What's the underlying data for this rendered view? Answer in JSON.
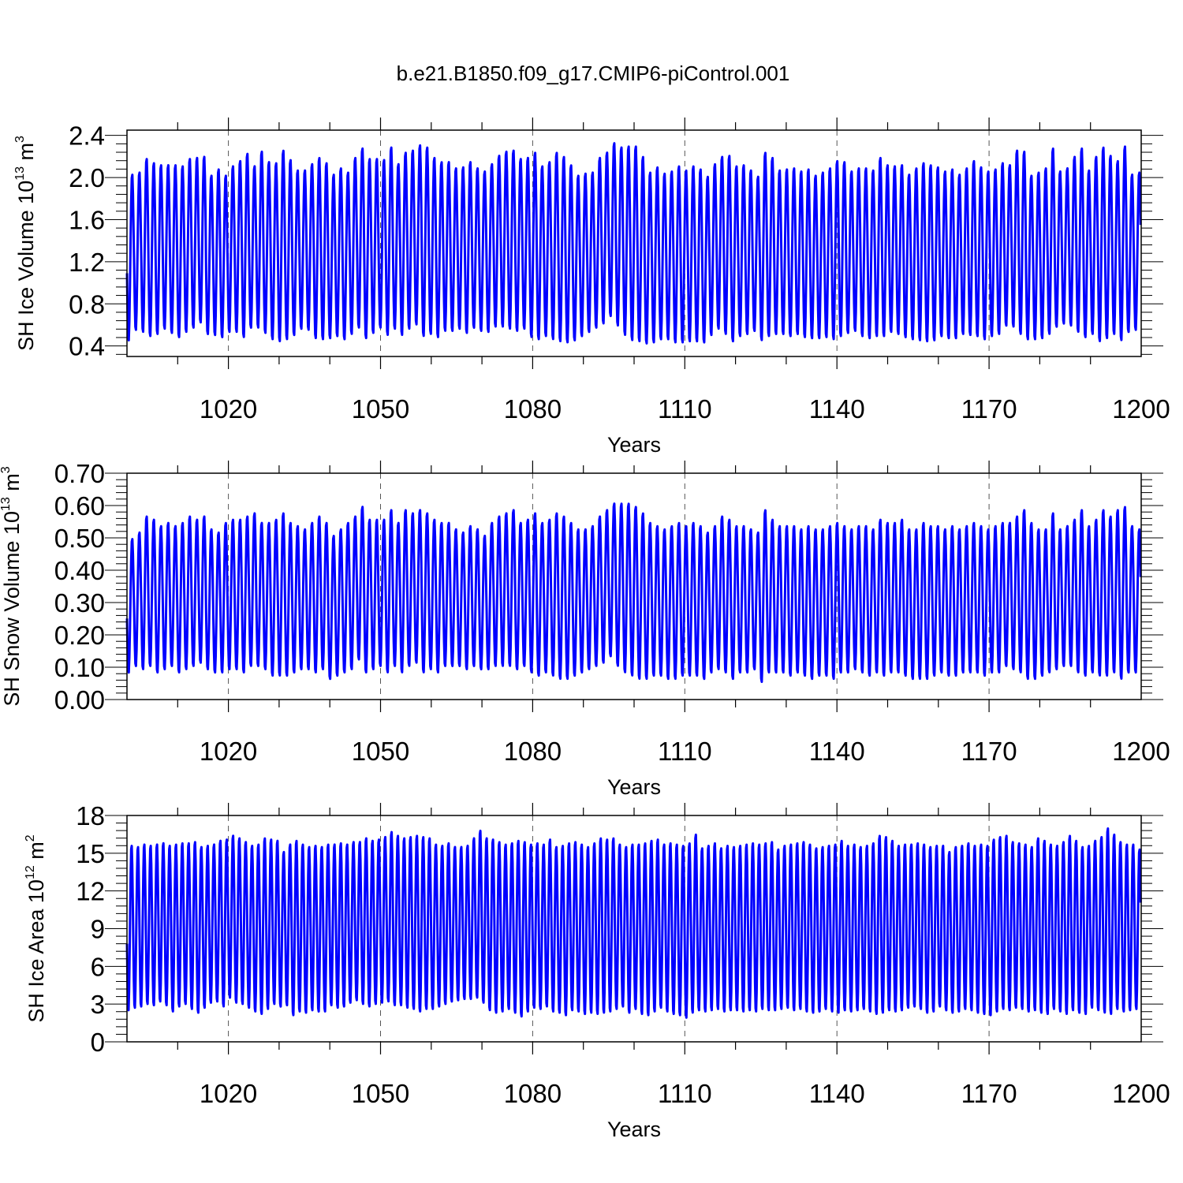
{
  "title": "b.e21.B1850.f09_g17.CMIP6-piControl.001",
  "colors": {
    "line": "#0000ff",
    "axis": "#000000",
    "grid": "#555555"
  },
  "chart_data": [
    {
      "type": "line",
      "title": "b.e21.B1850.f09_g17.CMIP6-piControl.001",
      "xlabel": "Years",
      "ylabel": {
        "prefix": "SH Ice Volume 10",
        "exp": "13",
        "unit": " m",
        "unit_exp": "3"
      },
      "xlim": [
        1000,
        1200
      ],
      "ylim": [
        0.3,
        2.45
      ],
      "x_ticks": [
        1020,
        1050,
        1080,
        1110,
        1140,
        1170,
        1200
      ],
      "x_tick_labels": [
        "1020",
        "1050",
        "1080",
        "1110",
        "1140",
        "1170",
        "1200"
      ],
      "y_ticks": [
        0.4,
        0.8,
        1.2,
        1.6,
        2.0,
        2.4
      ],
      "y_tick_labels": [
        "0.4",
        "0.8",
        "1.2",
        "1.6",
        "2.0",
        "2.4"
      ],
      "grid": "vertical dashed at major x ticks",
      "series": [
        {
          "color": "#0000ff",
          "start_year": 1000,
          "annual_max": [
            2.04,
            2.06,
            2.19,
            2.15,
            2.13,
            2.13,
            2.13,
            2.12,
            2.19,
            2.2,
            2.21,
            2.03,
            2.09,
            2.03,
            2.12,
            2.17,
            2.24,
            2.12,
            2.26,
            2.16,
            2.15,
            2.27,
            2.18,
            2.08,
            2.08,
            2.14,
            2.2,
            2.15,
            2.04,
            2.1,
            2.06,
            2.2,
            2.29,
            2.19,
            2.19,
            2.18,
            2.3,
            2.14,
            2.25,
            2.27,
            2.32,
            2.3,
            2.2,
            2.16,
            2.16,
            2.1,
            2.11,
            2.16,
            2.1,
            2.07,
            2.14,
            2.22,
            2.26,
            2.27,
            2.19,
            2.2,
            2.25,
            2.12,
            2.16,
            2.25,
            2.21,
            2.13,
            2.03,
            2.05,
            2.06,
            2.2,
            2.25,
            2.34,
            2.3,
            2.31,
            2.31,
            2.21,
            2.06,
            2.11,
            2.05,
            2.07,
            2.12,
            2.08,
            2.12,
            2.09,
            2.02,
            2.14,
            2.21,
            2.22,
            2.12,
            2.13,
            2.08,
            2.02,
            2.25,
            2.2,
            2.08,
            2.09,
            2.1,
            2.07,
            2.09,
            2.03,
            2.06,
            2.1,
            2.17,
            2.16,
            2.07,
            2.1,
            2.1,
            2.08,
            2.2,
            2.13,
            2.12,
            2.13,
            2.04,
            2.1,
            2.15,
            2.13,
            2.11,
            2.07,
            2.09,
            2.04,
            2.1,
            2.17,
            2.11,
            2.07,
            2.09,
            2.15,
            2.13,
            2.27,
            2.26,
            2.03,
            2.06,
            2.1,
            2.29,
            2.07,
            2.1,
            2.21,
            2.29,
            2.08,
            2.21,
            2.3,
            2.22,
            2.17,
            2.31,
            2.04,
            2.06
          ],
          "annual_min": [
            0.44,
            0.54,
            0.52,
            0.48,
            0.5,
            0.55,
            0.51,
            0.47,
            0.52,
            0.56,
            0.61,
            0.5,
            0.49,
            0.47,
            0.52,
            0.52,
            0.47,
            0.56,
            0.56,
            0.51,
            0.45,
            0.43,
            0.45,
            0.49,
            0.55,
            0.54,
            0.46,
            0.45,
            0.46,
            0.48,
            0.45,
            0.5,
            0.56,
            0.46,
            0.51,
            0.56,
            0.49,
            0.55,
            0.49,
            0.55,
            0.59,
            0.48,
            0.5,
            0.47,
            0.53,
            0.53,
            0.55,
            0.51,
            0.56,
            0.53,
            0.52,
            0.57,
            0.57,
            0.55,
            0.53,
            0.55,
            0.47,
            0.45,
            0.48,
            0.45,
            0.43,
            0.42,
            0.44,
            0.48,
            0.52,
            0.56,
            0.6,
            0.67,
            0.58,
            0.49,
            0.44,
            0.43,
            0.41,
            0.42,
            0.45,
            0.45,
            0.42,
            0.42,
            0.43,
            0.43,
            0.42,
            0.49,
            0.55,
            0.5,
            0.43,
            0.48,
            0.5,
            0.53,
            0.44,
            0.48,
            0.5,
            0.5,
            0.48,
            0.5,
            0.47,
            0.46,
            0.46,
            0.47,
            0.45,
            0.48,
            0.51,
            0.53,
            0.48,
            0.46,
            0.48,
            0.48,
            0.52,
            0.5,
            0.47,
            0.45,
            0.44,
            0.43,
            0.44,
            0.48,
            0.46,
            0.46,
            0.5,
            0.49,
            0.48,
            0.45,
            0.48,
            0.5,
            0.58,
            0.57,
            0.5,
            0.45,
            0.45,
            0.46,
            0.5,
            0.57,
            0.6,
            0.58,
            0.52,
            0.47,
            0.5,
            0.43,
            0.46,
            0.5,
            0.44,
            0.52,
            0.54
          ]
        }
      ]
    },
    {
      "type": "line",
      "xlabel": "Years",
      "ylabel": {
        "prefix": "SH Snow Volume 10",
        "exp": "13",
        "unit": " m",
        "unit_exp": "3"
      },
      "xlim": [
        1000,
        1200
      ],
      "ylim": [
        0.0,
        0.7
      ],
      "x_ticks": [
        1020,
        1050,
        1080,
        1110,
        1140,
        1170,
        1200
      ],
      "x_tick_labels": [
        "1020",
        "1050",
        "1080",
        "1110",
        "1140",
        "1170",
        "1200"
      ],
      "y_ticks": [
        0.0,
        0.1,
        0.2,
        0.3,
        0.4,
        0.5,
        0.6,
        0.7
      ],
      "y_tick_labels": [
        "0.00",
        "0.10",
        "0.20",
        "0.30",
        "0.40",
        "0.50",
        "0.60",
        "0.70"
      ],
      "grid": "vertical dashed at major x ticks",
      "series": [
        {
          "color": "#0000ff",
          "start_year": 1000,
          "annual_max": [
            0.5,
            0.52,
            0.57,
            0.56,
            0.54,
            0.55,
            0.54,
            0.55,
            0.57,
            0.56,
            0.57,
            0.53,
            0.52,
            0.55,
            0.56,
            0.56,
            0.57,
            0.58,
            0.55,
            0.55,
            0.56,
            0.58,
            0.55,
            0.54,
            0.53,
            0.55,
            0.57,
            0.55,
            0.51,
            0.53,
            0.55,
            0.57,
            0.6,
            0.56,
            0.56,
            0.56,
            0.59,
            0.55,
            0.59,
            0.58,
            0.59,
            0.58,
            0.56,
            0.55,
            0.55,
            0.53,
            0.52,
            0.54,
            0.53,
            0.51,
            0.55,
            0.57,
            0.58,
            0.59,
            0.55,
            0.56,
            0.58,
            0.55,
            0.56,
            0.58,
            0.57,
            0.55,
            0.53,
            0.53,
            0.54,
            0.57,
            0.59,
            0.61,
            0.61,
            0.61,
            0.6,
            0.58,
            0.55,
            0.54,
            0.53,
            0.54,
            0.55,
            0.54,
            0.55,
            0.54,
            0.52,
            0.54,
            0.57,
            0.56,
            0.54,
            0.54,
            0.53,
            0.52,
            0.59,
            0.56,
            0.54,
            0.54,
            0.54,
            0.53,
            0.54,
            0.53,
            0.53,
            0.54,
            0.55,
            0.54,
            0.53,
            0.54,
            0.54,
            0.53,
            0.56,
            0.55,
            0.55,
            0.56,
            0.53,
            0.53,
            0.55,
            0.54,
            0.54,
            0.53,
            0.54,
            0.53,
            0.54,
            0.55,
            0.54,
            0.53,
            0.54,
            0.55,
            0.55,
            0.57,
            0.59,
            0.55,
            0.53,
            0.53,
            0.58,
            0.53,
            0.54,
            0.56,
            0.59,
            0.54,
            0.56,
            0.59,
            0.57,
            0.59,
            0.6,
            0.54,
            0.53
          ],
          "annual_min": [
            0.08,
            0.1,
            0.09,
            0.1,
            0.08,
            0.09,
            0.1,
            0.08,
            0.09,
            0.1,
            0.11,
            0.09,
            0.08,
            0.08,
            0.09,
            0.09,
            0.08,
            0.1,
            0.1,
            0.09,
            0.07,
            0.07,
            0.07,
            0.08,
            0.09,
            0.09,
            0.08,
            0.09,
            0.06,
            0.07,
            0.08,
            0.09,
            0.12,
            0.08,
            0.09,
            0.1,
            0.08,
            0.1,
            0.08,
            0.1,
            0.11,
            0.08,
            0.09,
            0.08,
            0.1,
            0.1,
            0.1,
            0.09,
            0.1,
            0.09,
            0.09,
            0.1,
            0.1,
            0.1,
            0.09,
            0.1,
            0.08,
            0.07,
            0.08,
            0.07,
            0.06,
            0.06,
            0.07,
            0.08,
            0.09,
            0.1,
            0.11,
            0.13,
            0.1,
            0.08,
            0.07,
            0.06,
            0.06,
            0.07,
            0.07,
            0.06,
            0.06,
            0.07,
            0.07,
            0.07,
            0.06,
            0.08,
            0.09,
            0.08,
            0.06,
            0.08,
            0.08,
            0.09,
            0.05,
            0.08,
            0.08,
            0.08,
            0.07,
            0.08,
            0.07,
            0.06,
            0.07,
            0.07,
            0.06,
            0.08,
            0.08,
            0.09,
            0.08,
            0.07,
            0.08,
            0.07,
            0.08,
            0.08,
            0.07,
            0.06,
            0.06,
            0.06,
            0.07,
            0.08,
            0.07,
            0.07,
            0.08,
            0.08,
            0.08,
            0.07,
            0.08,
            0.08,
            0.1,
            0.09,
            0.08,
            0.06,
            0.06,
            0.07,
            0.08,
            0.09,
            0.1,
            0.1,
            0.08,
            0.07,
            0.08,
            0.07,
            0.07,
            0.08,
            0.06,
            0.08,
            0.08
          ]
        }
      ]
    },
    {
      "type": "line",
      "xlabel": "Years",
      "ylabel": {
        "prefix": "SH Ice Area 10",
        "exp": "12",
        "unit": " m",
        "unit_exp": "2"
      },
      "xlim": [
        1000,
        1200
      ],
      "ylim": [
        0,
        18
      ],
      "x_ticks": [
        1020,
        1050,
        1080,
        1110,
        1140,
        1170,
        1200
      ],
      "x_tick_labels": [
        "1020",
        "1050",
        "1080",
        "1110",
        "1140",
        "1170",
        "1200"
      ],
      "y_ticks": [
        0,
        3,
        6,
        9,
        12,
        15,
        18
      ],
      "y_tick_labels": [
        "0",
        "3",
        "6",
        "9",
        "12",
        "15",
        "18"
      ],
      "grid": "vertical dashed at major x ticks",
      "series": [
        {
          "color": "#0000ff",
          "start_year": 1000,
          "annual_max": [
            15.7,
            15.6,
            15.8,
            15.7,
            15.8,
            15.9,
            15.7,
            15.8,
            15.9,
            15.9,
            16.0,
            15.6,
            15.7,
            15.8,
            16.1,
            16.2,
            16.5,
            16.3,
            16.0,
            15.7,
            15.8,
            16.3,
            16.2,
            16.1,
            15.2,
            15.8,
            16.1,
            15.8,
            15.6,
            15.7,
            15.6,
            15.8,
            15.8,
            15.9,
            15.8,
            16.0,
            16.0,
            16.3,
            16.1,
            16.2,
            16.4,
            16.8,
            16.5,
            16.3,
            16.4,
            16.5,
            16.4,
            16.3,
            15.8,
            15.7,
            15.9,
            15.6,
            15.6,
            15.7,
            16.3,
            16.9,
            16.3,
            16.2,
            16.0,
            15.8,
            15.9,
            16.1,
            16.0,
            15.8,
            15.9,
            15.8,
            16.2,
            15.6,
            15.7,
            15.9,
            16.0,
            15.8,
            15.6,
            15.9,
            16.3,
            16.2,
            16.3,
            15.8,
            15.6,
            15.8,
            15.8,
            15.9,
            16.1,
            16.2,
            15.8,
            15.9,
            15.8,
            15.7,
            15.9,
            16.6,
            15.5,
            15.7,
            15.9,
            15.5,
            15.7,
            15.6,
            15.7,
            15.8,
            15.9,
            15.8,
            15.9,
            16.0,
            15.4,
            15.7,
            15.8,
            15.9,
            16.0,
            15.8,
            15.5,
            15.6,
            15.7,
            15.8,
            16.1,
            15.7,
            15.8,
            15.6,
            15.7,
            15.9,
            16.5,
            16.4,
            16.1,
            15.7,
            15.8,
            15.8,
            15.9,
            15.8,
            15.6,
            15.7,
            15.7,
            15.2,
            15.6,
            15.7,
            15.9,
            15.7,
            15.8,
            15.7,
            16.2,
            16.4,
            16.5,
            16.0,
            15.9,
            15.8,
            15.6,
            16.3,
            16.1,
            15.8,
            15.7,
            16.0,
            16.5,
            16.1,
            15.6,
            15.7,
            16.1,
            16.4,
            17.1,
            16.6,
            16.0,
            15.8,
            15.8,
            15.4
          ],
          "annual_min": [
            2.4,
            2.6,
            2.7,
            2.9,
            2.8,
            3.1,
            2.8,
            2.3,
            2.7,
            2.9,
            2.5,
            2.2,
            2.6,
            3.0,
            3.1,
            2.7,
            3.4,
            3.0,
            2.9,
            2.6,
            2.3,
            2.1,
            2.5,
            2.9,
            2.7,
            2.8,
            2.0,
            2.3,
            2.2,
            2.4,
            2.3,
            2.3,
            2.8,
            2.6,
            2.7,
            3.0,
            3.2,
            2.9,
            2.7,
            2.9,
            3.0,
            3.1,
            2.8,
            2.8,
            2.6,
            2.5,
            2.3,
            2.5,
            2.5,
            2.7,
            2.9,
            3.1,
            3.2,
            3.3,
            3.3,
            3.4,
            3.0,
            2.4,
            2.2,
            2.3,
            2.5,
            2.2,
            1.9,
            2.3,
            2.6,
            2.5,
            2.7,
            2.3,
            2.2,
            2.0,
            2.4,
            2.3,
            2.1,
            2.2,
            2.1,
            2.2,
            2.3,
            2.5,
            2.7,
            2.2,
            2.5,
            2.1,
            2.0,
            2.3,
            2.6,
            2.3,
            2.1,
            2.0,
            1.8,
            2.2,
            2.4,
            2.3,
            2.4,
            2.5,
            2.3,
            2.4,
            2.4,
            2.3,
            2.4,
            2.3,
            2.5,
            2.4,
            2.4,
            2.5,
            2.6,
            2.4,
            2.5,
            2.3,
            2.2,
            2.3,
            2.5,
            2.3,
            2.2,
            2.4,
            2.3,
            2.4,
            2.5,
            2.3,
            2.1,
            2.2,
            2.4,
            2.3,
            2.4,
            2.6,
            2.7,
            2.5,
            2.2,
            2.3,
            2.7,
            2.4,
            2.2,
            2.3,
            2.5,
            2.4,
            2.2,
            2.1,
            2.0,
            2.3,
            2.5,
            2.4,
            2.6,
            2.5,
            2.3,
            2.4,
            2.2,
            2.1,
            2.5,
            2.3,
            2.1,
            2.4,
            2.2,
            2.1,
            2.6,
            2.4,
            2.2,
            2.1,
            2.5,
            2.3,
            2.4,
            2.5,
            2.6,
            2.7
          ]
        }
      ]
    }
  ]
}
